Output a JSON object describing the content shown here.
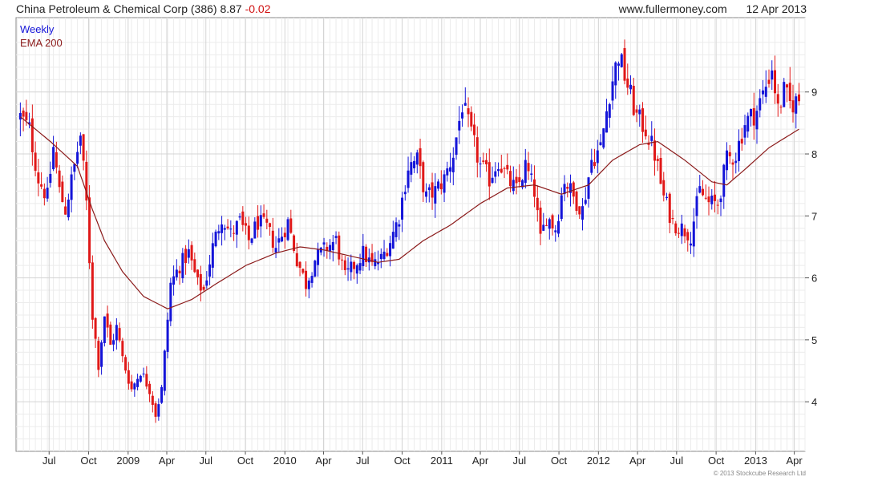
{
  "header": {
    "title": "China Petroleum & Chemical Corp (386)",
    "last_price": "8.87",
    "change": "-0.02",
    "site": "www.fullermoney.com",
    "date": "12 Apr 2013"
  },
  "copyright": "© 2013 Stockcube Research Ltd",
  "colors": {
    "up": "#1414d8",
    "down": "#e01818",
    "ema": "#8b1a1a",
    "grid": "#d4d4d4",
    "minor_grid": "#ececec"
  },
  "chart_data": {
    "type": "candlestick",
    "interval_label": "Weekly",
    "overlay_label": "EMA 200",
    "y_range": [
      3.2,
      10.2
    ],
    "y_ticks": [
      4,
      5,
      6,
      7,
      8,
      9
    ],
    "x_tick_labels": [
      "Jul",
      "Oct",
      "2009",
      "Apr",
      "Jul",
      "Oct",
      "2010",
      "Apr",
      "Jul",
      "Oct",
      "2011",
      "Apr",
      "Jul",
      "Oct",
      "2012",
      "Apr",
      "Jul",
      "Oct",
      "2013",
      "Apr"
    ],
    "grid": true,
    "legend_position": "top-left",
    "price_anchors": [
      [
        "2008-04-25",
        8.6
      ],
      [
        "2008-05-16",
        8.4
      ],
      [
        "2008-06-06",
        7.6
      ],
      [
        "2008-06-27",
        7.3
      ],
      [
        "2008-07-11",
        8.1
      ],
      [
        "2008-07-25",
        7.4
      ],
      [
        "2008-08-08",
        7.1
      ],
      [
        "2008-08-29",
        7.8
      ],
      [
        "2008-09-12",
        8.3
      ],
      [
        "2008-09-26",
        7.2
      ],
      [
        "2008-10-10",
        5.4
      ],
      [
        "2008-10-24",
        4.6
      ],
      [
        "2008-11-07",
        5.4
      ],
      [
        "2008-11-21",
        4.9
      ],
      [
        "2008-12-05",
        5.2
      ],
      [
        "2008-12-19",
        4.7
      ],
      [
        "2009-01-09",
        4.2
      ],
      [
        "2009-01-30",
        4.5
      ],
      [
        "2009-02-20",
        4.2
      ],
      [
        "2009-03-06",
        3.8
      ],
      [
        "2009-03-20",
        4.2
      ],
      [
        "2009-04-10",
        5.9
      ],
      [
        "2009-05-01",
        6.2
      ],
      [
        "2009-05-22",
        6.4
      ],
      [
        "2009-06-12",
        5.9
      ],
      [
        "2009-06-26",
        5.8
      ],
      [
        "2009-07-17",
        6.5
      ],
      [
        "2009-08-07",
        7.0
      ],
      [
        "2009-08-28",
        6.7
      ],
      [
        "2009-09-18",
        6.9
      ],
      [
        "2009-10-09",
        6.6
      ],
      [
        "2009-10-30",
        6.9
      ],
      [
        "2009-11-20",
        6.8
      ],
      [
        "2009-12-11",
        6.5
      ],
      [
        "2010-01-08",
        6.9
      ],
      [
        "2010-01-29",
        6.3
      ],
      [
        "2010-02-19",
        5.9
      ],
      [
        "2010-03-12",
        6.3
      ],
      [
        "2010-04-09",
        6.5
      ],
      [
        "2010-04-30",
        6.6
      ],
      [
        "2010-05-21",
        6.0
      ],
      [
        "2010-06-11",
        6.2
      ],
      [
        "2010-07-02",
        6.4
      ],
      [
        "2010-07-23",
        6.2
      ],
      [
        "2010-08-13",
        6.3
      ],
      [
        "2010-09-03",
        6.6
      ],
      [
        "2010-09-24",
        7.0
      ],
      [
        "2010-10-15",
        7.8
      ],
      [
        "2010-11-05",
        7.9
      ],
      [
        "2010-11-26",
        7.3
      ],
      [
        "2010-12-17",
        7.4
      ],
      [
        "2011-01-07",
        7.6
      ],
      [
        "2011-01-28",
        8.0
      ],
      [
        "2011-02-18",
        8.8
      ],
      [
        "2011-03-11",
        8.3
      ],
      [
        "2011-04-01",
        7.8
      ],
      [
        "2011-04-22",
        7.6
      ],
      [
        "2011-05-13",
        7.9
      ],
      [
        "2011-06-03",
        7.6
      ],
      [
        "2011-06-24",
        7.4
      ],
      [
        "2011-07-15",
        7.8
      ],
      [
        "2011-08-05",
        7.4
      ],
      [
        "2011-08-19",
        6.6
      ],
      [
        "2011-09-02",
        7.0
      ],
      [
        "2011-09-23",
        6.8
      ],
      [
        "2011-10-14",
        7.6
      ],
      [
        "2011-11-04",
        7.3
      ],
      [
        "2011-11-25",
        7.1
      ],
      [
        "2011-12-16",
        7.9
      ],
      [
        "2012-01-06",
        8.1
      ],
      [
        "2012-01-27",
        9.0
      ],
      [
        "2012-02-17",
        9.6
      ],
      [
        "2012-03-09",
        9.1
      ],
      [
        "2012-03-30",
        8.6
      ],
      [
        "2012-04-20",
        8.4
      ],
      [
        "2012-05-11",
        8.0
      ],
      [
        "2012-06-01",
        7.3
      ],
      [
        "2012-06-22",
        6.9
      ],
      [
        "2012-07-13",
        6.8
      ],
      [
        "2012-08-03",
        6.7
      ],
      [
        "2012-08-24",
        7.4
      ],
      [
        "2012-09-14",
        7.2
      ],
      [
        "2012-10-05",
        7.2
      ],
      [
        "2012-10-26",
        7.9
      ],
      [
        "2012-11-16",
        8.0
      ],
      [
        "2012-12-07",
        8.5
      ],
      [
        "2013-01-04",
        8.7
      ],
      [
        "2013-01-25",
        9.1
      ],
      [
        "2013-02-08",
        9.4
      ],
      [
        "2013-02-22",
        8.7
      ],
      [
        "2013-03-08",
        9.0
      ],
      [
        "2013-03-22",
        8.8
      ],
      [
        "2013-04-12",
        8.87
      ]
    ],
    "ema_anchors": [
      [
        "2008-04-25",
        8.6
      ],
      [
        "2008-07-04",
        8.2
      ],
      [
        "2008-09-05",
        7.8
      ],
      [
        "2008-10-10",
        7.1
      ],
      [
        "2008-11-07",
        6.6
      ],
      [
        "2008-12-19",
        6.1
      ],
      [
        "2009-02-06",
        5.7
      ],
      [
        "2009-04-03",
        5.5
      ],
      [
        "2009-05-29",
        5.65
      ],
      [
        "2009-07-24",
        5.9
      ],
      [
        "2009-10-02",
        6.2
      ],
      [
        "2009-12-11",
        6.4
      ],
      [
        "2010-02-05",
        6.5
      ],
      [
        "2010-04-02",
        6.45
      ],
      [
        "2010-06-04",
        6.35
      ],
      [
        "2010-08-06",
        6.25
      ],
      [
        "2010-09-24",
        6.3
      ],
      [
        "2010-11-19",
        6.6
      ],
      [
        "2011-01-21",
        6.85
      ],
      [
        "2011-04-01",
        7.2
      ],
      [
        "2011-06-03",
        7.45
      ],
      [
        "2011-08-05",
        7.5
      ],
      [
        "2011-10-07",
        7.35
      ],
      [
        "2011-12-09",
        7.5
      ],
      [
        "2012-02-03",
        7.9
      ],
      [
        "2012-04-06",
        8.15
      ],
      [
        "2012-05-18",
        8.2
      ],
      [
        "2012-07-20",
        7.9
      ],
      [
        "2012-09-21",
        7.55
      ],
      [
        "2012-10-26",
        7.5
      ],
      [
        "2012-12-07",
        7.75
      ],
      [
        "2013-02-01",
        8.1
      ],
      [
        "2013-04-12",
        8.4
      ]
    ]
  }
}
